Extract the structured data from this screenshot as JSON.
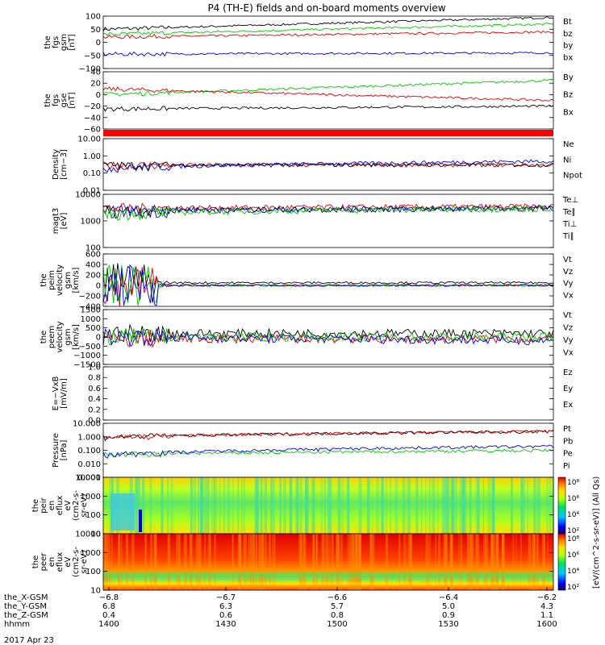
{
  "title": "P4 (TH-E) fields and on-board moments overview",
  "colors": {
    "black": "#000000",
    "red": "#e00000",
    "green": "#00c800",
    "blue": "#0000e0",
    "cyan": "#00a0c8"
  },
  "chart_data": [
    {
      "type": "line",
      "name": "fgs_gsm",
      "ylabel_lines": [
        "the",
        "fgs",
        "gsm",
        "[nT]"
      ],
      "yticks": [
        "100",
        "50",
        "0",
        "−50",
        "−100"
      ],
      "ylim": [
        -100,
        100
      ],
      "series": [
        {
          "name": "Bt",
          "color": "black",
          "start": 50,
          "end": 95
        },
        {
          "name": "bz",
          "color": "red",
          "start": 20,
          "end": 40
        },
        {
          "name": "by",
          "color": "green",
          "start": 30,
          "end": 70
        },
        {
          "name": "bx",
          "color": "blue",
          "start": -45,
          "end": -40
        }
      ]
    },
    {
      "type": "line",
      "name": "fgs_gse",
      "ylabel_lines": [
        "the",
        "fgs",
        "gse",
        "[nT]"
      ],
      "yticks": [
        "40",
        "20",
        "0",
        "−20",
        "−40",
        "−60"
      ],
      "ylim": [
        -60,
        40
      ],
      "series": [
        {
          "name": "By",
          "color": "green",
          "start": 0,
          "end": 25
        },
        {
          "name": "Bz",
          "color": "red",
          "start": 10,
          "end": -10
        },
        {
          "name": "Bx",
          "color": "black",
          "start": -25,
          "end": -20
        }
      ]
    },
    {
      "type": "line",
      "name": "density",
      "ylabel_lines": [
        "Density",
        "[cm−3]"
      ],
      "yticks": [
        "10.00",
        "1.00",
        "0.10",
        "0.01"
      ],
      "ylim": [
        0.01,
        10
      ],
      "log": true,
      "series": [
        {
          "name": "Ne",
          "color": "red",
          "start": 0.3,
          "end": 0.3
        },
        {
          "name": "Ni",
          "color": "black",
          "start": 0.3,
          "end": 0.3
        },
        {
          "name": "Npot",
          "color": "blue",
          "start": 0.2,
          "end": 0.5
        }
      ]
    },
    {
      "type": "line",
      "name": "temperature",
      "ylabel_lines": [
        "magt3",
        "[eV]"
      ],
      "yticks": [
        "10000",
        "1000",
        "100"
      ],
      "ylim": [
        100,
        10000
      ],
      "log": true,
      "series": [
        {
          "name": "Te⊥",
          "color": "red",
          "start": 3000,
          "end": 3500
        },
        {
          "name": "Te∥",
          "color": "black",
          "start": 2500,
          "end": 3000
        },
        {
          "name": "Ti⊥",
          "color": "blue",
          "start": 2500,
          "end": 3000
        },
        {
          "name": "Ti∥",
          "color": "green",
          "start": 2000,
          "end": 3000
        }
      ]
    },
    {
      "type": "line",
      "name": "peim_velocity",
      "ylabel_lines": [
        "the",
        "peim",
        "velocity",
        "gsm",
        "[km/s]"
      ],
      "yticks": [
        "600",
        "400",
        "200",
        "0",
        "−200",
        "−400"
      ],
      "ylim": [
        -400,
        600
      ],
      "series": [
        {
          "name": "Vt",
          "color": "black",
          "start": 50,
          "end": 50
        },
        {
          "name": "Vz",
          "color": "red",
          "start": 0,
          "end": 0
        },
        {
          "name": "Vy",
          "color": "green",
          "start": 0,
          "end": 0
        },
        {
          "name": "Vx",
          "color": "blue",
          "start": 0,
          "end": 0
        }
      ]
    },
    {
      "type": "line",
      "name": "peem_velocity",
      "ylabel_lines": [
        "the",
        "peem",
        "velocity",
        "gsm",
        "[km/s]"
      ],
      "yticks": [
        "1500",
        "1000",
        "500",
        "0",
        "−500",
        "−1000",
        "−1500"
      ],
      "ylim": [
        -1500,
        1500
      ],
      "series": [
        {
          "name": "Vt",
          "color": "black",
          "start": 200,
          "end": 200
        },
        {
          "name": "Vz",
          "color": "red",
          "start": -100,
          "end": -100
        },
        {
          "name": "Vy",
          "color": "green",
          "start": 0,
          "end": 0
        },
        {
          "name": "Vx",
          "color": "blue",
          "start": 0,
          "end": -200
        }
      ]
    },
    {
      "type": "line",
      "name": "efield",
      "ylabel_lines": [
        "E=−VxB",
        "[mV/m]"
      ],
      "yticks": [
        "1.0",
        "0.8",
        "0.6",
        "0.4",
        "0.2",
        "0.0"
      ],
      "ylim": [
        0,
        1
      ],
      "series": [
        {
          "name": "Ez",
          "color": "red",
          "start": null,
          "end": null
        },
        {
          "name": "Ey",
          "color": "green",
          "start": null,
          "end": null
        },
        {
          "name": "Ex",
          "color": "blue",
          "start": null,
          "end": null
        }
      ]
    },
    {
      "type": "line",
      "name": "pressure",
      "ylabel_lines": [
        "Pressure",
        "[nPa]"
      ],
      "yticks": [
        "10.000",
        "1.000",
        "0.100",
        "0.010",
        "0.001"
      ],
      "ylim": [
        0.001,
        10
      ],
      "log": true,
      "series": [
        {
          "name": "Pt",
          "color": "black",
          "start": 1.0,
          "end": 2.5
        },
        {
          "name": "Pb",
          "color": "red",
          "start": 1.0,
          "end": 2.5
        },
        {
          "name": "Pe",
          "color": "green",
          "start": 0.05,
          "end": 0.1
        },
        {
          "name": "Pi",
          "color": "blue",
          "start": 0.05,
          "end": 0.2
        }
      ]
    },
    {
      "type": "heatmap",
      "name": "peir_en_eflux",
      "ylabel_lines": [
        "the",
        "peir",
        "en",
        "eflux",
        "eV",
        "(cm2-s-",
        "sr-eV)"
      ],
      "yticks": [
        "10000",
        "1000",
        "100",
        "10"
      ],
      "ylim": [
        10,
        10000
      ],
      "log": true,
      "colorbar": {
        "ticks": [
          "10⁸",
          "10⁶",
          "10⁴",
          "10²"
        ],
        "label": "[eV/(cm^2-s-sr-eV)] (All Qs)"
      }
    },
    {
      "type": "heatmap",
      "name": "peer_en_eflux",
      "ylabel_lines": [
        "the",
        "peer",
        "en",
        "eflux",
        "eV",
        "(cm2-s-",
        "sr-eV)"
      ],
      "yticks": [
        "10000",
        "1000",
        "100",
        "10"
      ],
      "ylim": [
        10,
        10000
      ],
      "log": true,
      "colorbar": {
        "ticks": [
          "10⁸",
          "10⁶",
          "10⁴",
          "10²"
        ],
        "label": "[eV/(cm^2-s-sr-eV)] (All Qs)"
      }
    }
  ],
  "xaxis": {
    "rows": [
      {
        "label": "the_X-GSM",
        "values": [
          "−6.8",
          "−6.7",
          "−6.6",
          "−6.4",
          "−6.2"
        ]
      },
      {
        "label": "the_Y-GSM",
        "values": [
          "6.8",
          "6.3",
          "5.7",
          "5.0",
          "4.3"
        ]
      },
      {
        "label": "the_Z-GSM",
        "values": [
          "0.4",
          "0.6",
          "0.8",
          "0.9",
          "1.1"
        ]
      },
      {
        "label": "hhmm",
        "values": [
          "1400",
          "1430",
          "1500",
          "1530",
          "1600"
        ]
      }
    ],
    "date": "2017 Apr 23"
  }
}
